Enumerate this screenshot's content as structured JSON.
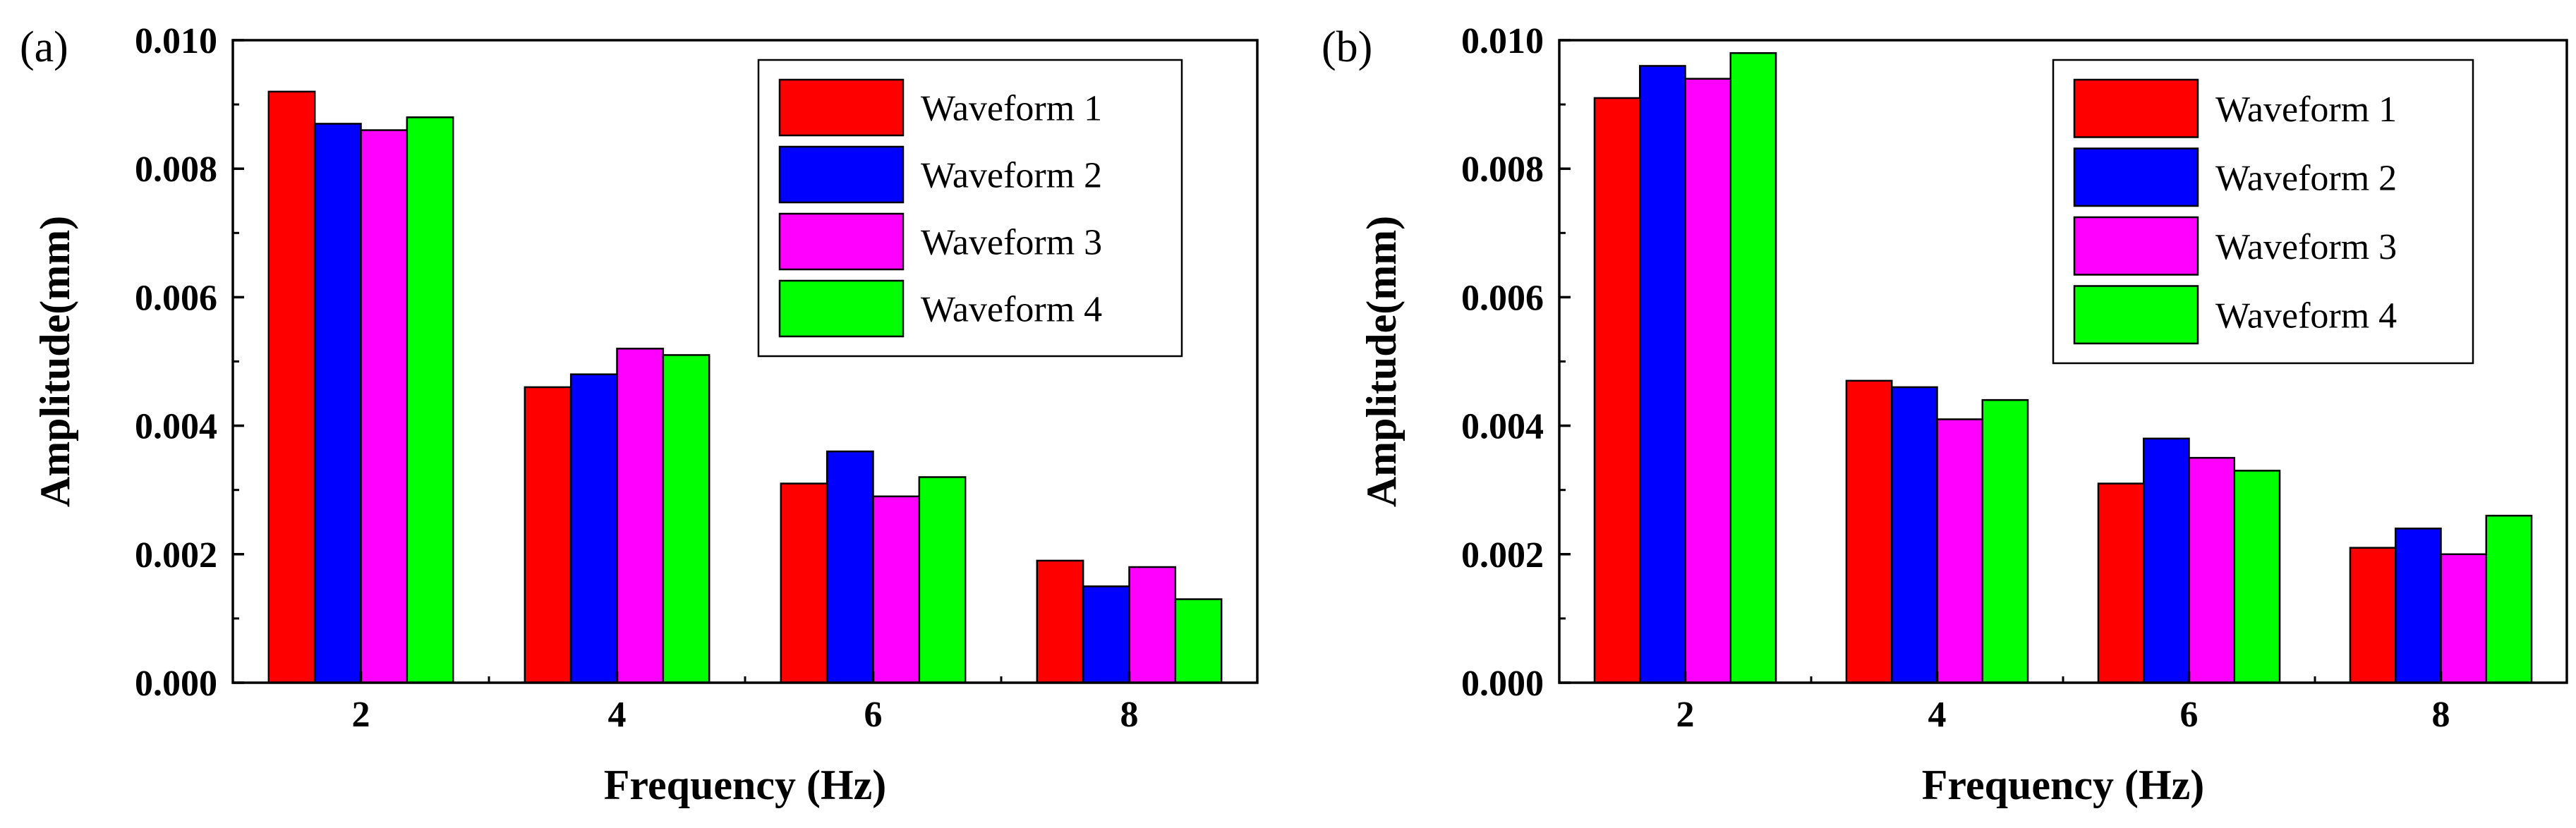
{
  "chart_data": [
    {
      "type": "bar",
      "panel_label": "(a)",
      "title": "",
      "xlabel": "Frequency (Hz)",
      "ylabel": "Amplitude(mm)",
      "categories": [
        "2",
        "4",
        "6",
        "8"
      ],
      "ylim": [
        0,
        0.01
      ],
      "yticks": [
        "0.000",
        "0.002",
        "0.004",
        "0.006",
        "0.008",
        "0.010"
      ],
      "legend_position": "top-right",
      "grid": false,
      "series": [
        {
          "name": "Waveform 1",
          "color": "#ff0000",
          "values": [
            0.0092,
            0.0046,
            0.0031,
            0.0019
          ]
        },
        {
          "name": "Waveform 2",
          "color": "#0000ff",
          "values": [
            0.0087,
            0.0048,
            0.0036,
            0.0015
          ]
        },
        {
          "name": "Waveform 3",
          "color": "#ff00ff",
          "values": [
            0.0086,
            0.0052,
            0.0029,
            0.0018
          ]
        },
        {
          "name": "Waveform 4",
          "color": "#00ff00",
          "values": [
            0.0088,
            0.0051,
            0.0032,
            0.0013
          ]
        }
      ]
    },
    {
      "type": "bar",
      "panel_label": "(b)",
      "title": "",
      "xlabel": "Frequency (Hz)",
      "ylabel": "Amplitude(mm)",
      "categories": [
        "2",
        "4",
        "6",
        "8"
      ],
      "ylim": [
        0,
        0.01
      ],
      "yticks": [
        "0.000",
        "0.002",
        "0.004",
        "0.006",
        "0.008",
        "0.010"
      ],
      "legend_position": "top-right",
      "grid": false,
      "series": [
        {
          "name": "Waveform 1",
          "color": "#ff0000",
          "values": [
            0.0091,
            0.0047,
            0.0031,
            0.0021
          ]
        },
        {
          "name": "Waveform 2",
          "color": "#0000ff",
          "values": [
            0.0096,
            0.0046,
            0.0038,
            0.0024
          ]
        },
        {
          "name": "Waveform 3",
          "color": "#ff00ff",
          "values": [
            0.0094,
            0.0041,
            0.0035,
            0.002
          ]
        },
        {
          "name": "Waveform 4",
          "color": "#00ff00",
          "values": [
            0.0098,
            0.0044,
            0.0033,
            0.0026
          ]
        }
      ]
    }
  ]
}
